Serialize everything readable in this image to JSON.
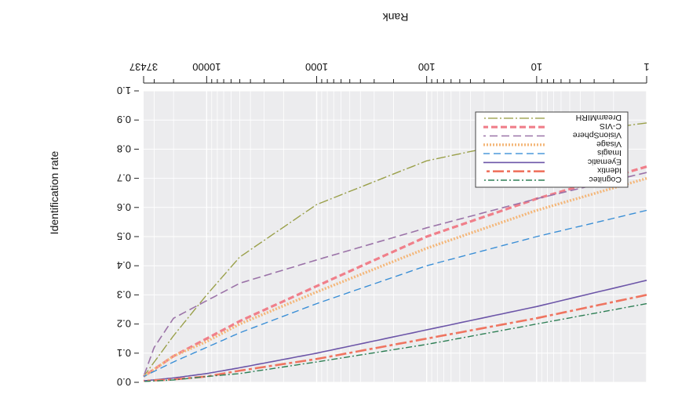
{
  "chart_data": {
    "type": "line",
    "title": "",
    "xlabel": "Rank",
    "ylabel": "Identification rate",
    "x_scale": "log",
    "xlim": [
      1,
      37437
    ],
    "ylim": [
      0.0,
      1.0
    ],
    "grid": true,
    "legend_position": "upper right (as printed, image is rotated 180°)",
    "orientation_note": "figure printed upside down (rotated 180 degrees)",
    "x_ticks": [
      {
        "value": 1,
        "label": "1"
      },
      {
        "value": 10,
        "label": "10"
      },
      {
        "value": 100,
        "label": "100"
      },
      {
        "value": 1000,
        "label": "1000"
      },
      {
        "value": 10000,
        "label": "10000"
      },
      {
        "value": 37437,
        "label": "37437"
      }
    ],
    "y_ticks": [
      "0.0",
      "0.1",
      "0.2",
      "0.3",
      "0.4",
      "0.5",
      "0.6",
      "0.7",
      "0.8",
      "0.9",
      "1.0"
    ],
    "series": [
      {
        "name": "DreamMIRH",
        "color": "#9aa04a",
        "dash": "12,3,2,3",
        "width": 1.4,
        "x": [
          1,
          10,
          100,
          1000,
          5000,
          10000,
          20000,
          37437
        ],
        "y": [
          0.89,
          0.84,
          0.76,
          0.61,
          0.43,
          0.3,
          0.16,
          0.02
        ]
      },
      {
        "name": "C-VIS",
        "color": "#f07f8a",
        "dash": "8,4",
        "width": 3.2,
        "x": [
          1,
          10,
          100,
          1000,
          5000,
          10000,
          20000,
          37437
        ],
        "y": [
          0.74,
          0.63,
          0.5,
          0.33,
          0.21,
          0.15,
          0.09,
          0.02
        ]
      },
      {
        "name": "VisionSphere",
        "color": "#9b73a8",
        "dash": "10,5",
        "width": 1.6,
        "x": [
          1,
          10,
          100,
          1000,
          5000,
          10000,
          20000,
          30000,
          37437
        ],
        "y": [
          0.72,
          0.63,
          0.53,
          0.42,
          0.34,
          0.28,
          0.22,
          0.12,
          0.02
        ]
      },
      {
        "name": "Visage",
        "color": "#f4b77a",
        "dash": "2,2",
        "width": 3.4,
        "x": [
          1,
          10,
          100,
          1000,
          5000,
          10000,
          20000,
          37437
        ],
        "y": [
          0.7,
          0.59,
          0.46,
          0.31,
          0.2,
          0.14,
          0.09,
          0.02
        ]
      },
      {
        "name": "Imagis",
        "color": "#3b8fd6",
        "dash": "9,5",
        "width": 1.4,
        "x": [
          1,
          10,
          100,
          1000,
          5000,
          10000,
          20000,
          37437
        ],
        "y": [
          0.59,
          0.5,
          0.4,
          0.27,
          0.17,
          0.12,
          0.07,
          0.02
        ]
      },
      {
        "name": "Eyematic",
        "color": "#6c55a8",
        "dash": "",
        "width": 1.6,
        "x": [
          1,
          10,
          100,
          1000,
          5000,
          10000,
          20000,
          37437
        ],
        "y": [
          0.35,
          0.26,
          0.18,
          0.1,
          0.05,
          0.03,
          0.015,
          0.005
        ]
      },
      {
        "name": "Identix",
        "color": "#ef7460",
        "dash": "14,4,4,4",
        "width": 2.6,
        "x": [
          1,
          10,
          100,
          1000,
          5000,
          10000,
          20000,
          37437
        ],
        "y": [
          0.3,
          0.22,
          0.15,
          0.08,
          0.04,
          0.02,
          0.01,
          0.005
        ]
      },
      {
        "name": "Cognitec",
        "color": "#2e7f55",
        "dash": "8,3,2,3",
        "width": 1.4,
        "x": [
          1,
          10,
          100,
          1000,
          5000,
          10000,
          20000,
          37437
        ],
        "y": [
          0.27,
          0.2,
          0.13,
          0.07,
          0.03,
          0.02,
          0.008,
          0.003
        ]
      }
    ]
  }
}
